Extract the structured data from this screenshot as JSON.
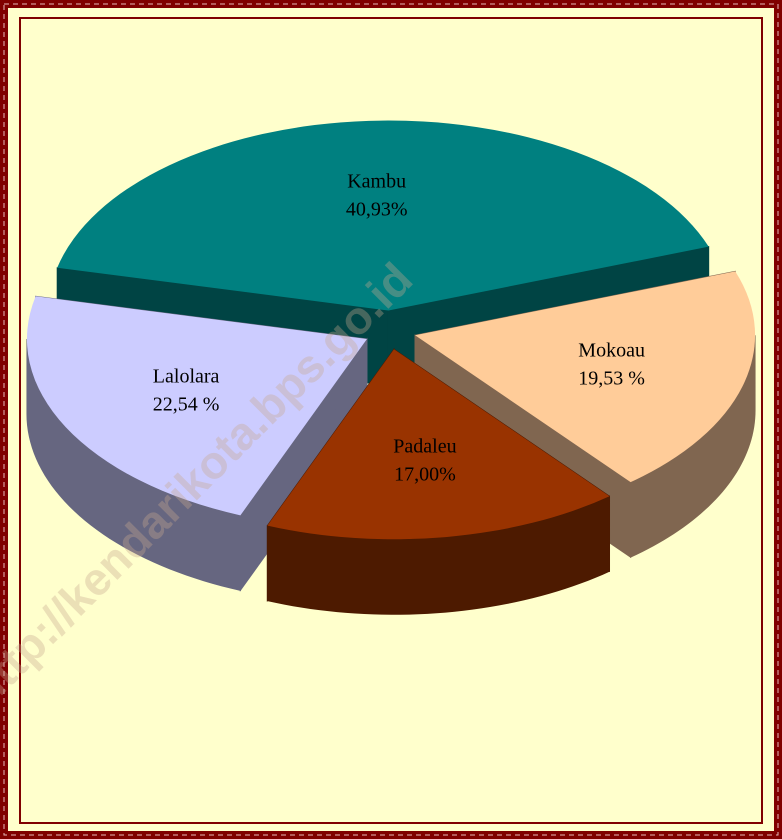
{
  "chart_data": {
    "type": "pie3d",
    "categories": [
      "Kambu",
      "Mokoau",
      "Padaleu",
      "Lalolara"
    ],
    "values": [
      40.93,
      19.53,
      17.0,
      22.54
    ],
    "value_labels": [
      "40,93%",
      "19,53 %",
      "17,00%",
      "22,54 %"
    ],
    "colors": [
      "#008080",
      "#FFCC99",
      "#993300",
      "#CCCCFF"
    ],
    "side_colors": [
      "#004444",
      "#806650",
      "#4d1a00",
      "#666680"
    ],
    "watermark": "http://kendarikota.bps.go.id"
  }
}
